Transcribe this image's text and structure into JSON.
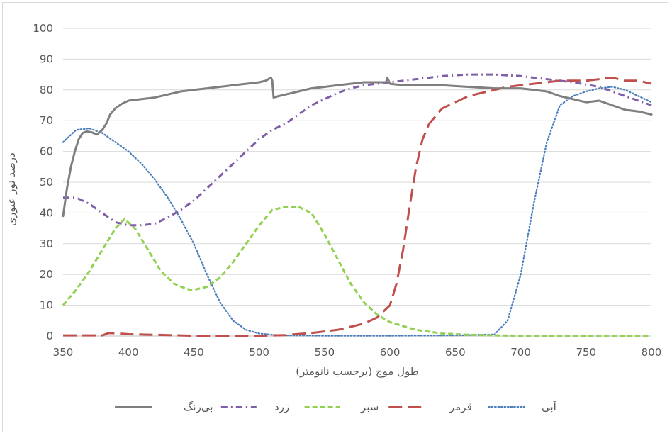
{
  "chart_data": {
    "type": "line",
    "title": "",
    "xlabel": "طول موج (برحسب نانومتر)",
    "ylabel": "درصد نور عبوری",
    "xlim": [
      350,
      800
    ],
    "ylim": [
      0,
      100
    ],
    "xticks": [
      350,
      400,
      450,
      500,
      550,
      600,
      650,
      700,
      750,
      800
    ],
    "yticks": [
      0,
      10,
      20,
      30,
      40,
      50,
      60,
      70,
      80,
      90,
      100
    ],
    "grid": true,
    "legend_position": "bottom",
    "series": [
      {
        "name": "آبی",
        "color": "#4a7ebb",
        "style": "dotted",
        "x": [
          350,
          360,
          370,
          380,
          390,
          400,
          410,
          420,
          430,
          440,
          450,
          460,
          470,
          480,
          490,
          500,
          510,
          520,
          550,
          600,
          650,
          680,
          690,
          700,
          710,
          720,
          730,
          740,
          750,
          760,
          770,
          780,
          790,
          800
        ],
        "y": [
          63,
          67,
          67.5,
          66,
          63,
          60,
          56,
          51,
          45,
          38,
          30,
          20,
          11,
          5,
          2,
          0.8,
          0.4,
          0.2,
          0.1,
          0.1,
          0.2,
          0.5,
          5,
          20,
          43,
          63,
          75,
          78,
          79.5,
          80.5,
          81,
          80,
          78,
          76
        ]
      },
      {
        "name": "قرمز",
        "color": "#c0504d",
        "style": "long-dash",
        "x": [
          350,
          380,
          385,
          400,
          450,
          500,
          520,
          540,
          560,
          580,
          590,
          600,
          605,
          610,
          615,
          620,
          625,
          630,
          640,
          650,
          660,
          670,
          680,
          690,
          700,
          710,
          720,
          730,
          740,
          750,
          760,
          770,
          780,
          790,
          800
        ],
        "y": [
          0.2,
          0.2,
          1,
          0.6,
          0.1,
          0.1,
          0.3,
          1,
          2,
          4,
          6,
          10,
          17,
          28,
          42,
          55,
          64,
          69,
          74,
          76,
          78,
          79,
          80,
          81,
          81.5,
          82,
          82.5,
          83,
          83,
          83,
          83.5,
          84,
          83,
          83,
          82
        ]
      },
      {
        "name": "سبز",
        "color": "#92d050",
        "style": "dashed",
        "x": [
          350,
          360,
          370,
          380,
          390,
          397,
          405,
          415,
          425,
          435,
          445,
          450,
          460,
          470,
          480,
          490,
          500,
          510,
          520,
          530,
          540,
          550,
          560,
          570,
          580,
          590,
          600,
          620,
          640,
          660,
          680,
          700,
          750,
          800
        ],
        "y": [
          10,
          15,
          21,
          28,
          35,
          38,
          35,
          28,
          21,
          17,
          15.2,
          15,
          16,
          19,
          24,
          30,
          36,
          41,
          42,
          42,
          40,
          33,
          25,
          17,
          11,
          7,
          4.5,
          2,
          0.8,
          0.4,
          0.2,
          0.1,
          0.1,
          0.1
        ]
      },
      {
        "name": "زرد",
        "color": "#7f5fa8",
        "style": "dash-dot",
        "x": [
          350,
          360,
          370,
          380,
          390,
          400,
          410,
          420,
          430,
          440,
          450,
          460,
          470,
          480,
          490,
          500,
          510,
          520,
          530,
          540,
          550,
          560,
          570,
          580,
          590,
          600,
          620,
          640,
          660,
          680,
          700,
          720,
          740,
          760,
          780,
          800
        ],
        "y": [
          45,
          45,
          43,
          40,
          37,
          36,
          36,
          36.5,
          38.5,
          41,
          44,
          48,
          52,
          56,
          60,
          64,
          67,
          69,
          72,
          75,
          77,
          79,
          80.5,
          81.5,
          82,
          82.5,
          83.5,
          84.5,
          85,
          85,
          84.5,
          83.5,
          82.5,
          81,
          78,
          75
        ]
      },
      {
        "name": "بی‌رنگ",
        "color": "#7f7f7f",
        "style": "solid",
        "x": [
          350,
          353,
          356,
          359,
          362,
          365,
          368,
          372,
          376,
          380,
          383,
          386,
          390,
          395,
          400,
          410,
          420,
          430,
          440,
          450,
          460,
          470,
          480,
          490,
          500,
          505,
          509,
          510,
          511,
          515,
          520,
          530,
          540,
          550,
          560,
          570,
          580,
          590,
          597,
          598,
          600,
          610,
          620,
          640,
          660,
          680,
          700,
          710,
          720,
          730,
          740,
          750,
          760,
          770,
          780,
          790,
          800
        ],
        "y": [
          39,
          48,
          55,
          60,
          64,
          66,
          66.5,
          66.2,
          65.5,
          67,
          69,
          72,
          74,
          75.5,
          76.5,
          77,
          77.5,
          78.5,
          79.5,
          80,
          80.5,
          81,
          81.5,
          82,
          82.5,
          83,
          84,
          83,
          77.5,
          78,
          78.5,
          79.5,
          80.5,
          81,
          81.5,
          82,
          82.5,
          82.5,
          82.5,
          84,
          82,
          81.5,
          81.5,
          81.5,
          81,
          80.5,
          80.5,
          80,
          79.5,
          78,
          77,
          76,
          76.5,
          75,
          73.5,
          73,
          72
        ]
      }
    ]
  }
}
